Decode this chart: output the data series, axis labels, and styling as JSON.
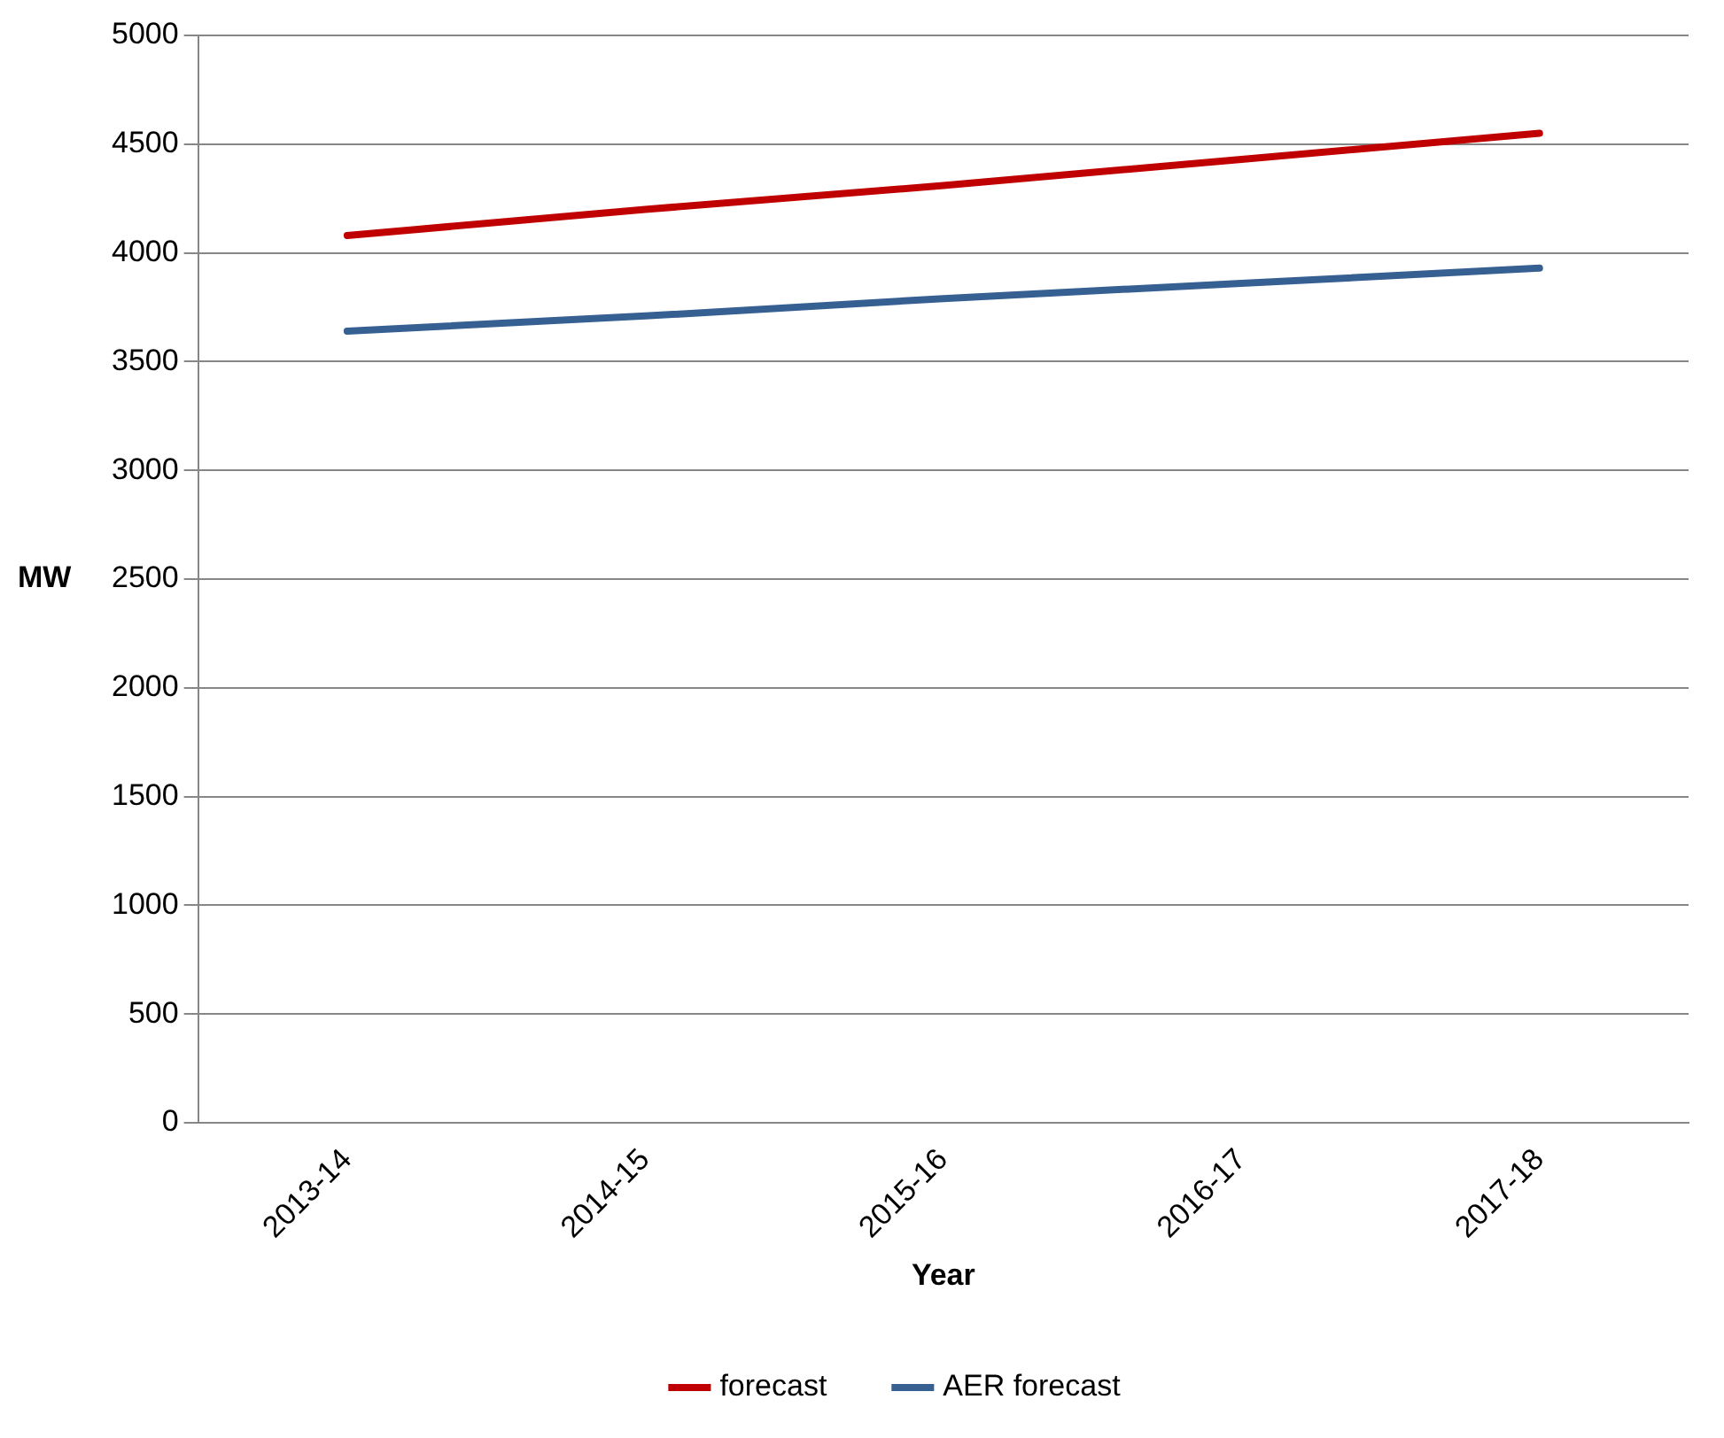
{
  "chart_data": {
    "type": "line",
    "xlabel": "Year",
    "ylabel": "MW",
    "categories": [
      "2013-14",
      "2014-15",
      "2015-16",
      "2016-17",
      "2017-18"
    ],
    "series": [
      {
        "name": "forecast",
        "color": "#c00000",
        "values": [
          4080,
          4200,
          4310,
          4430,
          4550
        ]
      },
      {
        "name": "AER forecast",
        "color": "#376092",
        "values": [
          3640,
          3710,
          3790,
          3860,
          3930
        ]
      }
    ],
    "ylim": [
      0,
      5000
    ],
    "yticks": [
      0,
      500,
      1000,
      1500,
      2000,
      2500,
      3000,
      3500,
      4000,
      4500,
      5000
    ],
    "grid": "y",
    "legend": "bottom",
    "marker": "none",
    "line_style": "solid"
  }
}
